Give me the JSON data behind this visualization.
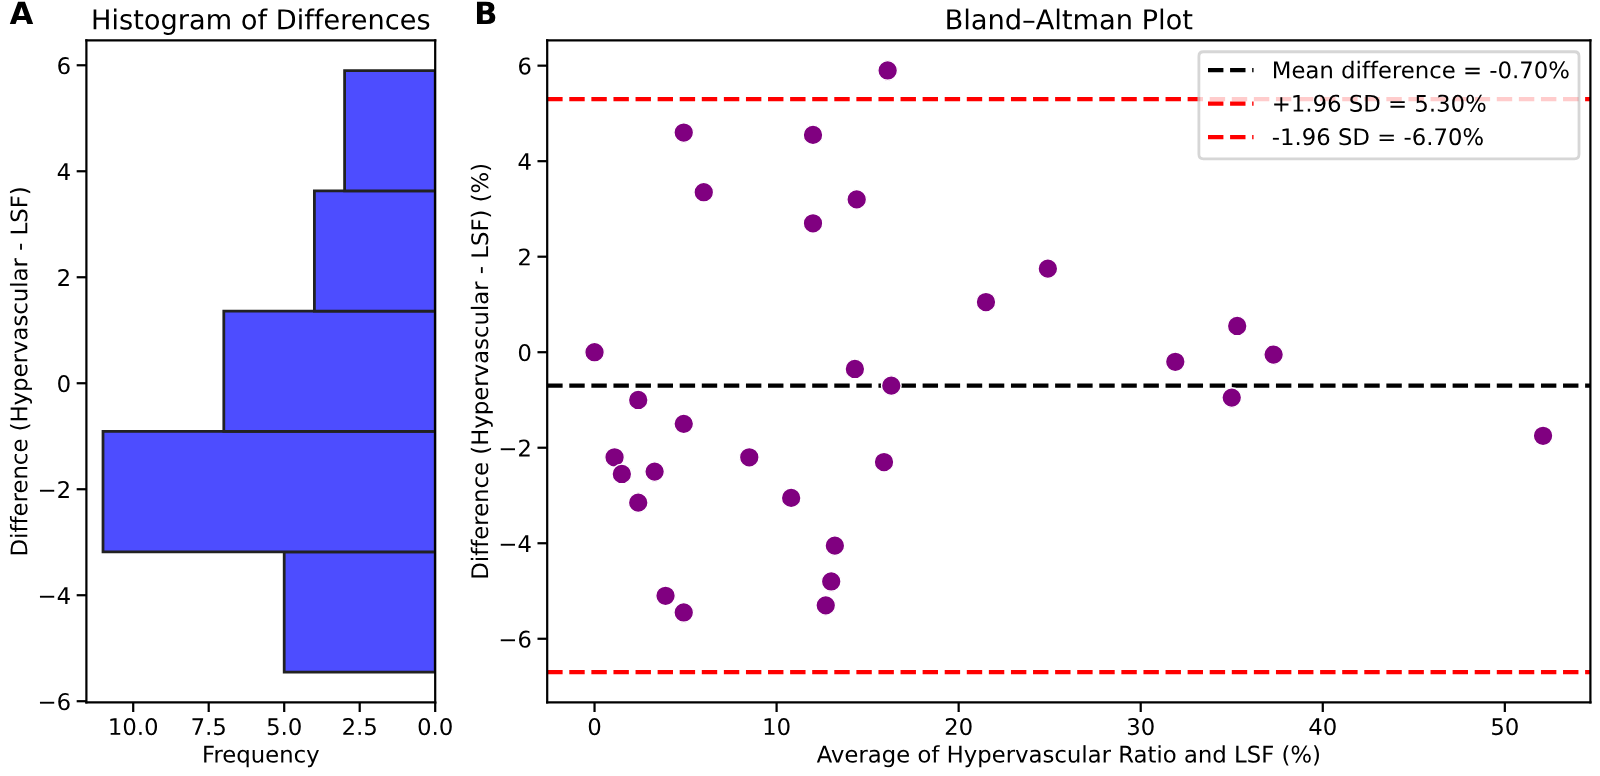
{
  "chart_data": [
    {
      "type": "histogram",
      "orientation": "horizontal",
      "title": "Histogram of Differences",
      "xlabel": "Frequency",
      "ylabel": "Difference (Hypervascular - LSF)",
      "annotations": [
        "A"
      ],
      "bins": [
        -5.45,
        -3.18,
        -0.91,
        1.36,
        3.63,
        5.9
      ],
      "values": [
        5,
        11,
        7,
        4,
        3
      ],
      "color": "#4d4dff",
      "xlim": [
        11.55,
        0
      ],
      "xticks": [
        {
          "value": 10,
          "label": "10.0"
        },
        {
          "value": 7.5,
          "label": "7.5"
        },
        {
          "value": 5,
          "label": "5.0"
        },
        {
          "value": 2.5,
          "label": "2.5"
        },
        {
          "value": 0,
          "label": "0.0"
        }
      ],
      "ylim": [
        -6.02,
        6.47
      ],
      "yticks": [
        {
          "value": -6,
          "label": "−6"
        },
        {
          "value": -4,
          "label": "−4"
        },
        {
          "value": -2,
          "label": "−2"
        },
        0,
        2,
        4,
        6
      ],
      "grid": false
    },
    {
      "type": "scatter",
      "title": "Bland–Altman Plot",
      "xlabel": "Average of Hypervascular Ratio and LSF (%)",
      "ylabel": "Difference (Hypervascular - LSF) (%)",
      "annotations": [
        "B"
      ],
      "x": [
        0,
        2.4,
        4.9,
        6.0,
        12.0,
        12.0,
        14.4,
        16.1,
        14.3,
        16.3,
        21.5,
        24.9,
        31.9,
        35.3,
        37.3,
        35.0,
        52.1,
        4.9,
        1.1,
        1.5,
        3.3,
        2.4,
        8.5,
        10.8,
        15.9,
        13.2,
        13.0,
        12.7,
        3.9,
        4.9
      ],
      "values": [
        0,
        -1.0,
        4.6,
        3.35,
        4.55,
        2.7,
        3.2,
        5.9,
        -0.35,
        -0.7,
        1.05,
        1.75,
        -0.2,
        0.55,
        -0.05,
        -0.95,
        -1.75,
        -1.5,
        -2.2,
        -2.55,
        -2.5,
        -3.15,
        -2.2,
        -3.05,
        -2.3,
        -4.05,
        -4.8,
        -5.3,
        -5.1,
        -5.45
      ],
      "color": "#800080",
      "marker": "circle",
      "xlim": [
        -2.6,
        54.7
      ],
      "xticks": [
        0,
        10,
        20,
        30,
        40,
        50
      ],
      "ylim": [
        -7.33,
        6.53
      ],
      "yticks": [
        {
          "value": -6,
          "label": "−6"
        },
        {
          "value": -4,
          "label": "−4"
        },
        {
          "value": -2,
          "label": "−2"
        },
        0,
        2,
        4,
        6
      ],
      "ref_lines": [
        {
          "axis": "y",
          "value": -0.7,
          "label": "Mean difference = -0.70%",
          "color": "#000000",
          "line_style": "dashed"
        },
        {
          "axis": "y",
          "value": 5.3,
          "label": "+1.96 SD = 5.30%",
          "color": "#ff0000",
          "line_style": "dashed"
        },
        {
          "axis": "y",
          "value": -6.7,
          "label": "-1.96 SD = -6.70%",
          "color": "#ff0000",
          "line_style": "dashed"
        }
      ],
      "legend": "top right",
      "grid": false
    }
  ]
}
